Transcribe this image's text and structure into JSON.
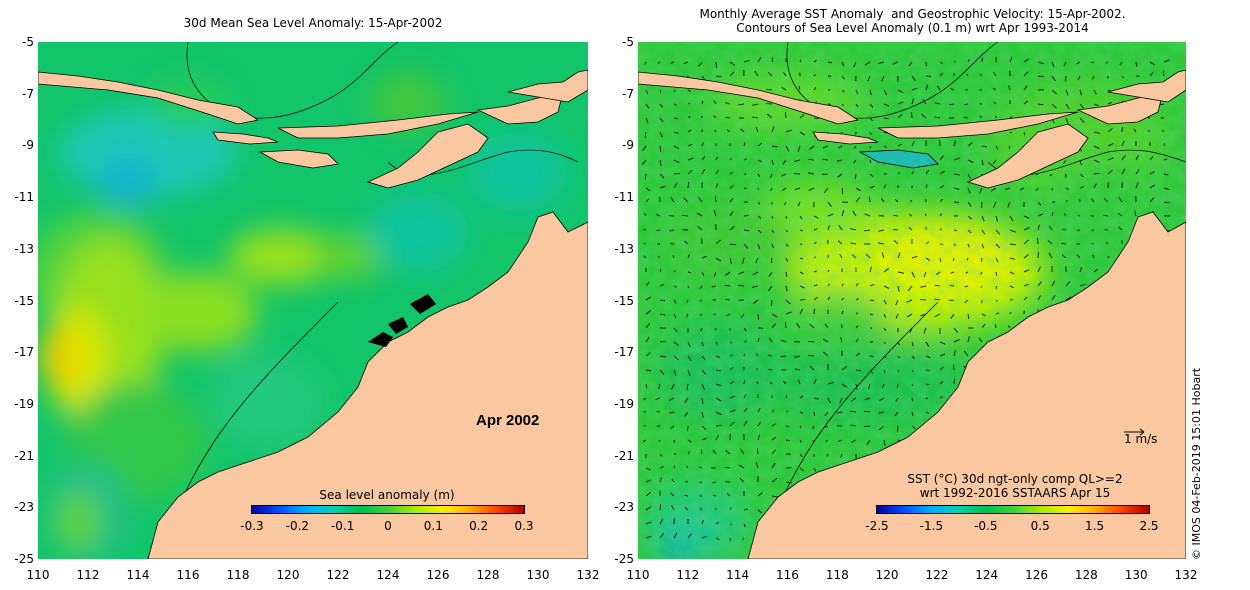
{
  "left_panel": {
    "title": "30d Mean Sea Level Anomaly: 15-Apr-2002",
    "month_label": "Apr 2002",
    "colorbar": {
      "title": "Sea level anomaly (m)",
      "ticks": [
        "-0.3",
        "-0.2",
        "-0.1",
        "0",
        "0.1",
        "0.2",
        "0.3"
      ],
      "range": [
        -0.3,
        0.3
      ]
    }
  },
  "right_panel": {
    "title_line1": "Monthly Average SST Anomaly  and Geostrophic Velocity: 15-Apr-2002.",
    "title_line2": "Contours of Sea Level Anomaly (0.1 m) wrt Apr 1993-2014",
    "colorbar": {
      "title_line1": "SST (°C) 30d ngt-only comp QL>=2",
      "title_line2": "wrt 1992-2016 SSTAARS Apr 15",
      "ticks": [
        "-2.5",
        "-1.5",
        "-0.5",
        "0.5",
        "1.5",
        "2.5"
      ],
      "range": [
        -2.5,
        2.5
      ]
    },
    "velocity_scale_label": "1 m/s"
  },
  "axes": {
    "lat_ticks": [
      "-5",
      "-7",
      "-9",
      "-11",
      "-13",
      "-15",
      "-17",
      "-19",
      "-21",
      "-23",
      "-25"
    ],
    "lon_ticks": [
      "110",
      "112",
      "114",
      "116",
      "118",
      "120",
      "122",
      "124",
      "126",
      "128",
      "130",
      "132"
    ],
    "lat_range": [
      -25,
      -5
    ],
    "lon_range": [
      110,
      132
    ]
  },
  "credit": "© IMOS 04-Feb-2019 15:01 Hobart",
  "colors": {
    "land": "#f9c7a0",
    "sla_ramp": [
      "#0000a0",
      "#0050ff",
      "#00b0ff",
      "#00d2b4",
      "#00c050",
      "#3fd23c",
      "#a8ec00",
      "#f4f000",
      "#ffb000",
      "#ff4000",
      "#b00000"
    ],
    "sst_base": "#22c83c"
  }
}
